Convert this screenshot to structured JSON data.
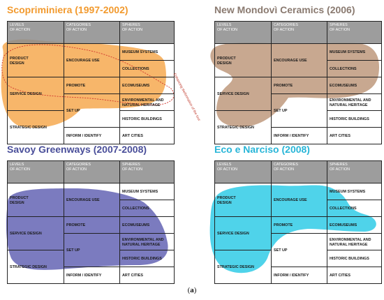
{
  "panels": [
    {
      "title": "Scopriminiera (1997-2002)",
      "title_color": "#f29a2e",
      "blob_color": "#f7b66a",
      "annotation": "Enhancing the\nformation of the tour"
    },
    {
      "title": "New Mondovì Ceramics (2006)",
      "title_color": "#8a7a70",
      "blob_color": "#c8a890"
    },
    {
      "title": "Savoy Greenways (2007-2008)",
      "title_color": "#4a4f9a",
      "blob_color": "#7b7bbf"
    },
    {
      "title": "Eco e Narciso (2008)",
      "title_color": "#29b6d8",
      "blob_color": "#4fd3ea"
    }
  ],
  "headers": {
    "levels": "LEVELS\nOF ACTION",
    "categories": "CATEGORIES\nOF ACTION",
    "spheres": "SPHERES\nOF ACTION"
  },
  "levels": [
    "PRODUCT\nDESIGN",
    "SERVICE DESIGN",
    "STRATEGIC DESIGN"
  ],
  "categories": [
    "ENCOURAGE USE",
    "PROMOTE",
    "SET UP",
    "INFORM / IDENTIFY"
  ],
  "spheres": [
    "MUSEUM SYSTEMS",
    "COLLECTIONS",
    "ECOMUSEUMS",
    "ENVIRONMENTAL AND\nNATURAL HERITAGE",
    "HISTORIC BUILDINGS",
    "ART CITIES"
  ],
  "caption": "(a)"
}
